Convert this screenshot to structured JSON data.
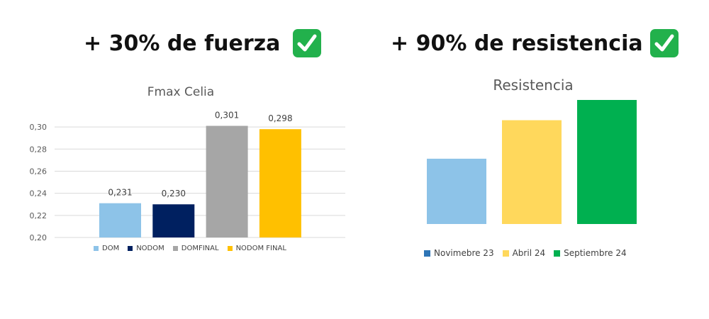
{
  "headlines": {
    "strength": "+ 30% de fuerza",
    "endurance": "+ 90% de resistencia",
    "check_icon": "check-mark-button-icon",
    "check_color": "#22B14C"
  },
  "chart_data": [
    {
      "type": "bar",
      "title": "Fmax Celia",
      "categories": [
        "DOM",
        "NODOM",
        "DOMFINAL",
        "NODOM FINAL"
      ],
      "values": [
        0.231,
        0.23,
        0.301,
        0.298
      ],
      "data_labels": [
        "0,231",
        "0,230",
        "0,301",
        "0,298"
      ],
      "colors": [
        "#8DC3E8",
        "#002060",
        "#A6A6A6",
        "#FFC000"
      ],
      "ylim": [
        0.2,
        0.31
      ],
      "yticks": [
        0.2,
        0.22,
        0.24,
        0.26,
        0.28,
        0.3
      ],
      "ytick_labels": [
        "0,20",
        "0,22",
        "0,24",
        "0,26",
        "0,28",
        "0,30"
      ],
      "grid": true,
      "legend": "bottom"
    },
    {
      "type": "bar",
      "title": "Resistencia",
      "categories": [
        "Novimebre 23",
        "Abril 24",
        "Septiembre 24"
      ],
      "values": [
        1.0,
        1.59,
        1.9
      ],
      "colors": [
        "#8DC3E8",
        "#FFD85C",
        "#00B050"
      ],
      "legend_colors": [
        "#2E75B6",
        "#FFD85C",
        "#00B050"
      ],
      "ylim": [
        0,
        1.9
      ],
      "grid": false,
      "legend": "bottom"
    }
  ]
}
